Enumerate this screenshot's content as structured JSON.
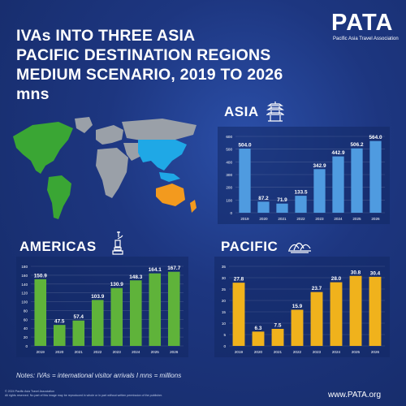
{
  "header": {
    "title_lines": [
      "IVAs INTO THREE ASIA",
      "PACIFIC DESTINATION REGIONS",
      "MEDIUM SCENARIO, 2019 TO 2026",
      "mns"
    ]
  },
  "logo": {
    "word": "PATA",
    "tagline": "Pacific Asia Travel Association"
  },
  "footer": {
    "notes": "Notes: IVAs = international visitor arrivals I mns = millions",
    "copyright": "© 2024 Pacific Asia Travel Association",
    "rights": "All rights reserved. No part of this image may be reproduced in whole or in part without written permission of the publisher.",
    "website": "www.PATA.org"
  },
  "colors": {
    "background": "#1d3680",
    "asia_bar": "#4f9be0",
    "americas_bar": "#5fb33a",
    "pacific_bar": "#f0b21c",
    "asia_highlight": "#1fa8e6",
    "oceania_highlight": "#f39a1e",
    "americas_highlight": "#3aa634"
  },
  "icons": {
    "asia": "pagoda-icon",
    "americas": "statue-of-liberty-icon",
    "pacific": "sydney-opera-house-icon"
  },
  "chart_data": [
    {
      "type": "bar",
      "title": "ASIA",
      "categories": [
        "2019",
        "2020",
        "2021",
        "2022",
        "2023",
        "2024",
        "2025",
        "2026"
      ],
      "values": [
        504.0,
        87.2,
        71.9,
        133.5,
        342.9,
        442.9,
        506.2,
        564.0
      ],
      "value_labels": [
        "504.0",
        "87.2",
        "71.9",
        "133.5",
        "342.9",
        "442.9",
        "506.2",
        "564.0"
      ],
      "ylim": [
        0,
        600
      ],
      "yticks": [
        0,
        100,
        200,
        300,
        400,
        500,
        600
      ],
      "grid": true,
      "xlabel": "",
      "ylabel": ""
    },
    {
      "type": "bar",
      "title": "AMERICAS",
      "categories": [
        "2019",
        "2020",
        "2021",
        "2022",
        "2023",
        "2024",
        "2025",
        "2026"
      ],
      "values": [
        150.9,
        47.5,
        57.4,
        103.9,
        130.9,
        148.3,
        164.1,
        167.7
      ],
      "value_labels": [
        "150.9",
        "47.5",
        "57.4",
        "103.9",
        "130.9",
        "148.3",
        "164.1",
        "167.7"
      ],
      "ylim": [
        0,
        180
      ],
      "yticks": [
        0,
        20,
        40,
        60,
        80,
        100,
        120,
        140,
        160,
        180
      ],
      "grid": true,
      "xlabel": "",
      "ylabel": ""
    },
    {
      "type": "bar",
      "title": "PACIFIC",
      "categories": [
        "2019",
        "2020",
        "2021",
        "2022",
        "2023",
        "2024",
        "2025",
        "2026"
      ],
      "values": [
        27.8,
        6.3,
        7.5,
        15.9,
        23.7,
        28.0,
        30.8,
        30.4
      ],
      "value_labels": [
        "27.8",
        "6.3",
        "7.5",
        "15.9",
        "23.7",
        "28.0",
        "30.8",
        "30.4"
      ],
      "ylim": [
        0,
        35
      ],
      "yticks": [
        0,
        5,
        10,
        15,
        20,
        25,
        30,
        35
      ],
      "grid": true,
      "xlabel": "",
      "ylabel": ""
    }
  ]
}
